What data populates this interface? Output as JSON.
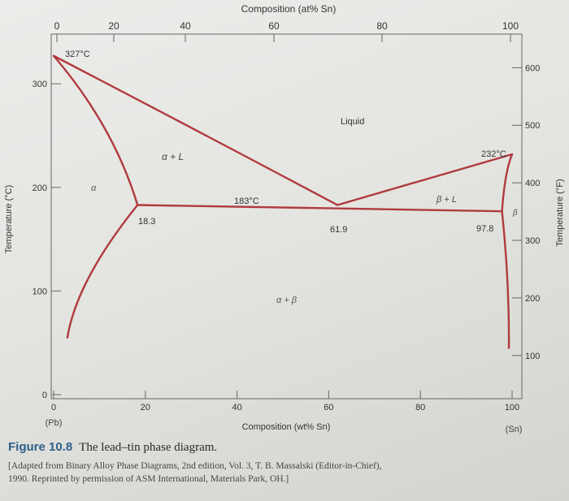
{
  "top_axis": {
    "title": "Composition (at% Sn)",
    "ticks": [
      {
        "v": 0,
        "label": "0"
      },
      {
        "v": 20,
        "label": "20"
      },
      {
        "v": 40,
        "label": "40"
      },
      {
        "v": 60,
        "label": "60"
      },
      {
        "v": 80,
        "label": "80"
      },
      {
        "v": 100,
        "label": "100"
      }
    ]
  },
  "bottom_axis": {
    "title": "Composition (wt% Sn)",
    "ticks": [
      {
        "v": 0,
        "label": "0"
      },
      {
        "v": 20,
        "label": "20"
      },
      {
        "v": 40,
        "label": "40"
      },
      {
        "v": 60,
        "label": "60"
      },
      {
        "v": 80,
        "label": "80"
      },
      {
        "v": 100,
        "label": "100"
      }
    ],
    "left_end": "(Pb)",
    "right_end": "(Sn)"
  },
  "left_axis": {
    "title": "Temperature (°C)",
    "ticks": [
      {
        "v": 0,
        "label": "0"
      },
      {
        "v": 100,
        "label": "100"
      },
      {
        "v": 200,
        "label": "200"
      },
      {
        "v": 300,
        "label": "300"
      }
    ]
  },
  "right_axis": {
    "title": "Temperature (°F)",
    "ticks": [
      {
        "v": 100,
        "label": "100"
      },
      {
        "v": 200,
        "label": "200"
      },
      {
        "v": 300,
        "label": "300"
      },
      {
        "v": 400,
        "label": "400"
      },
      {
        "v": 500,
        "label": "500"
      },
      {
        "v": 600,
        "label": "600"
      }
    ]
  },
  "labels": {
    "pb_melt": "327°C",
    "sn_melt": "232°C",
    "eutectic_temp": "183°C",
    "eutectic_comp": "61.9",
    "alpha_max": "18.3",
    "beta_max": "97.8",
    "liquid": "Liquid",
    "alpha_l": "α + L",
    "beta_l": "β + L",
    "alpha": "α",
    "beta": "β",
    "alpha_beta": "α + β"
  },
  "phase_points": {
    "pb_melting": [
      0,
      327
    ],
    "sn_melting": [
      100,
      232
    ],
    "eutectic": [
      61.9,
      183
    ],
    "alpha_solvus_max": [
      18.3,
      183
    ],
    "beta_solvus_max": [
      97.8,
      183
    ]
  },
  "line_color": "#b03a3e",
  "caption": {
    "figure_number": "Figure 10.8",
    "title": "The lead–tin phase diagram.",
    "source_1": "[Adapted from Binary Alloy Phase Diagrams, 2nd edition, Vol. 3, T. B. Massalski (Editor-in-Chief),",
    "source_2": "1990. Reprinted by permission of ASM International, Materials Park, OH.]"
  }
}
